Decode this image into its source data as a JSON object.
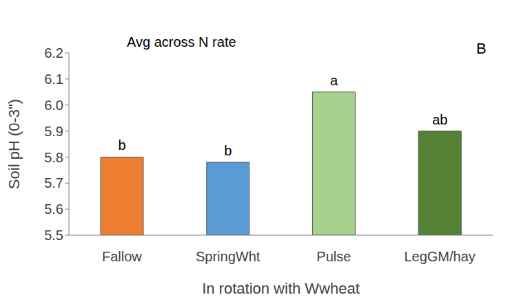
{
  "chart_data": {
    "type": "bar",
    "title": "Avg across N rate",
    "panel_label": "B",
    "x_label": "In rotation with Wwheat",
    "y_label": "Soil pH (0-3\")",
    "categories": [
      "Fallow",
      "SpringWht",
      "Pulse",
      "LegGM/hay"
    ],
    "values": [
      5.8,
      5.78,
      6.05,
      5.9
    ],
    "annotations": [
      "b",
      "b",
      "a",
      "ab"
    ],
    "colors": [
      "#ed7d31",
      "#5b9bd5",
      "#a9d18e",
      "#548235"
    ],
    "ylim": [
      5.5,
      6.2
    ],
    "yticks": [
      5.5,
      5.6,
      5.7,
      5.8,
      5.9,
      {
        "value": 6,
        "label": "6.0"
      },
      6.1,
      6.2
    ],
    "grid": false
  }
}
